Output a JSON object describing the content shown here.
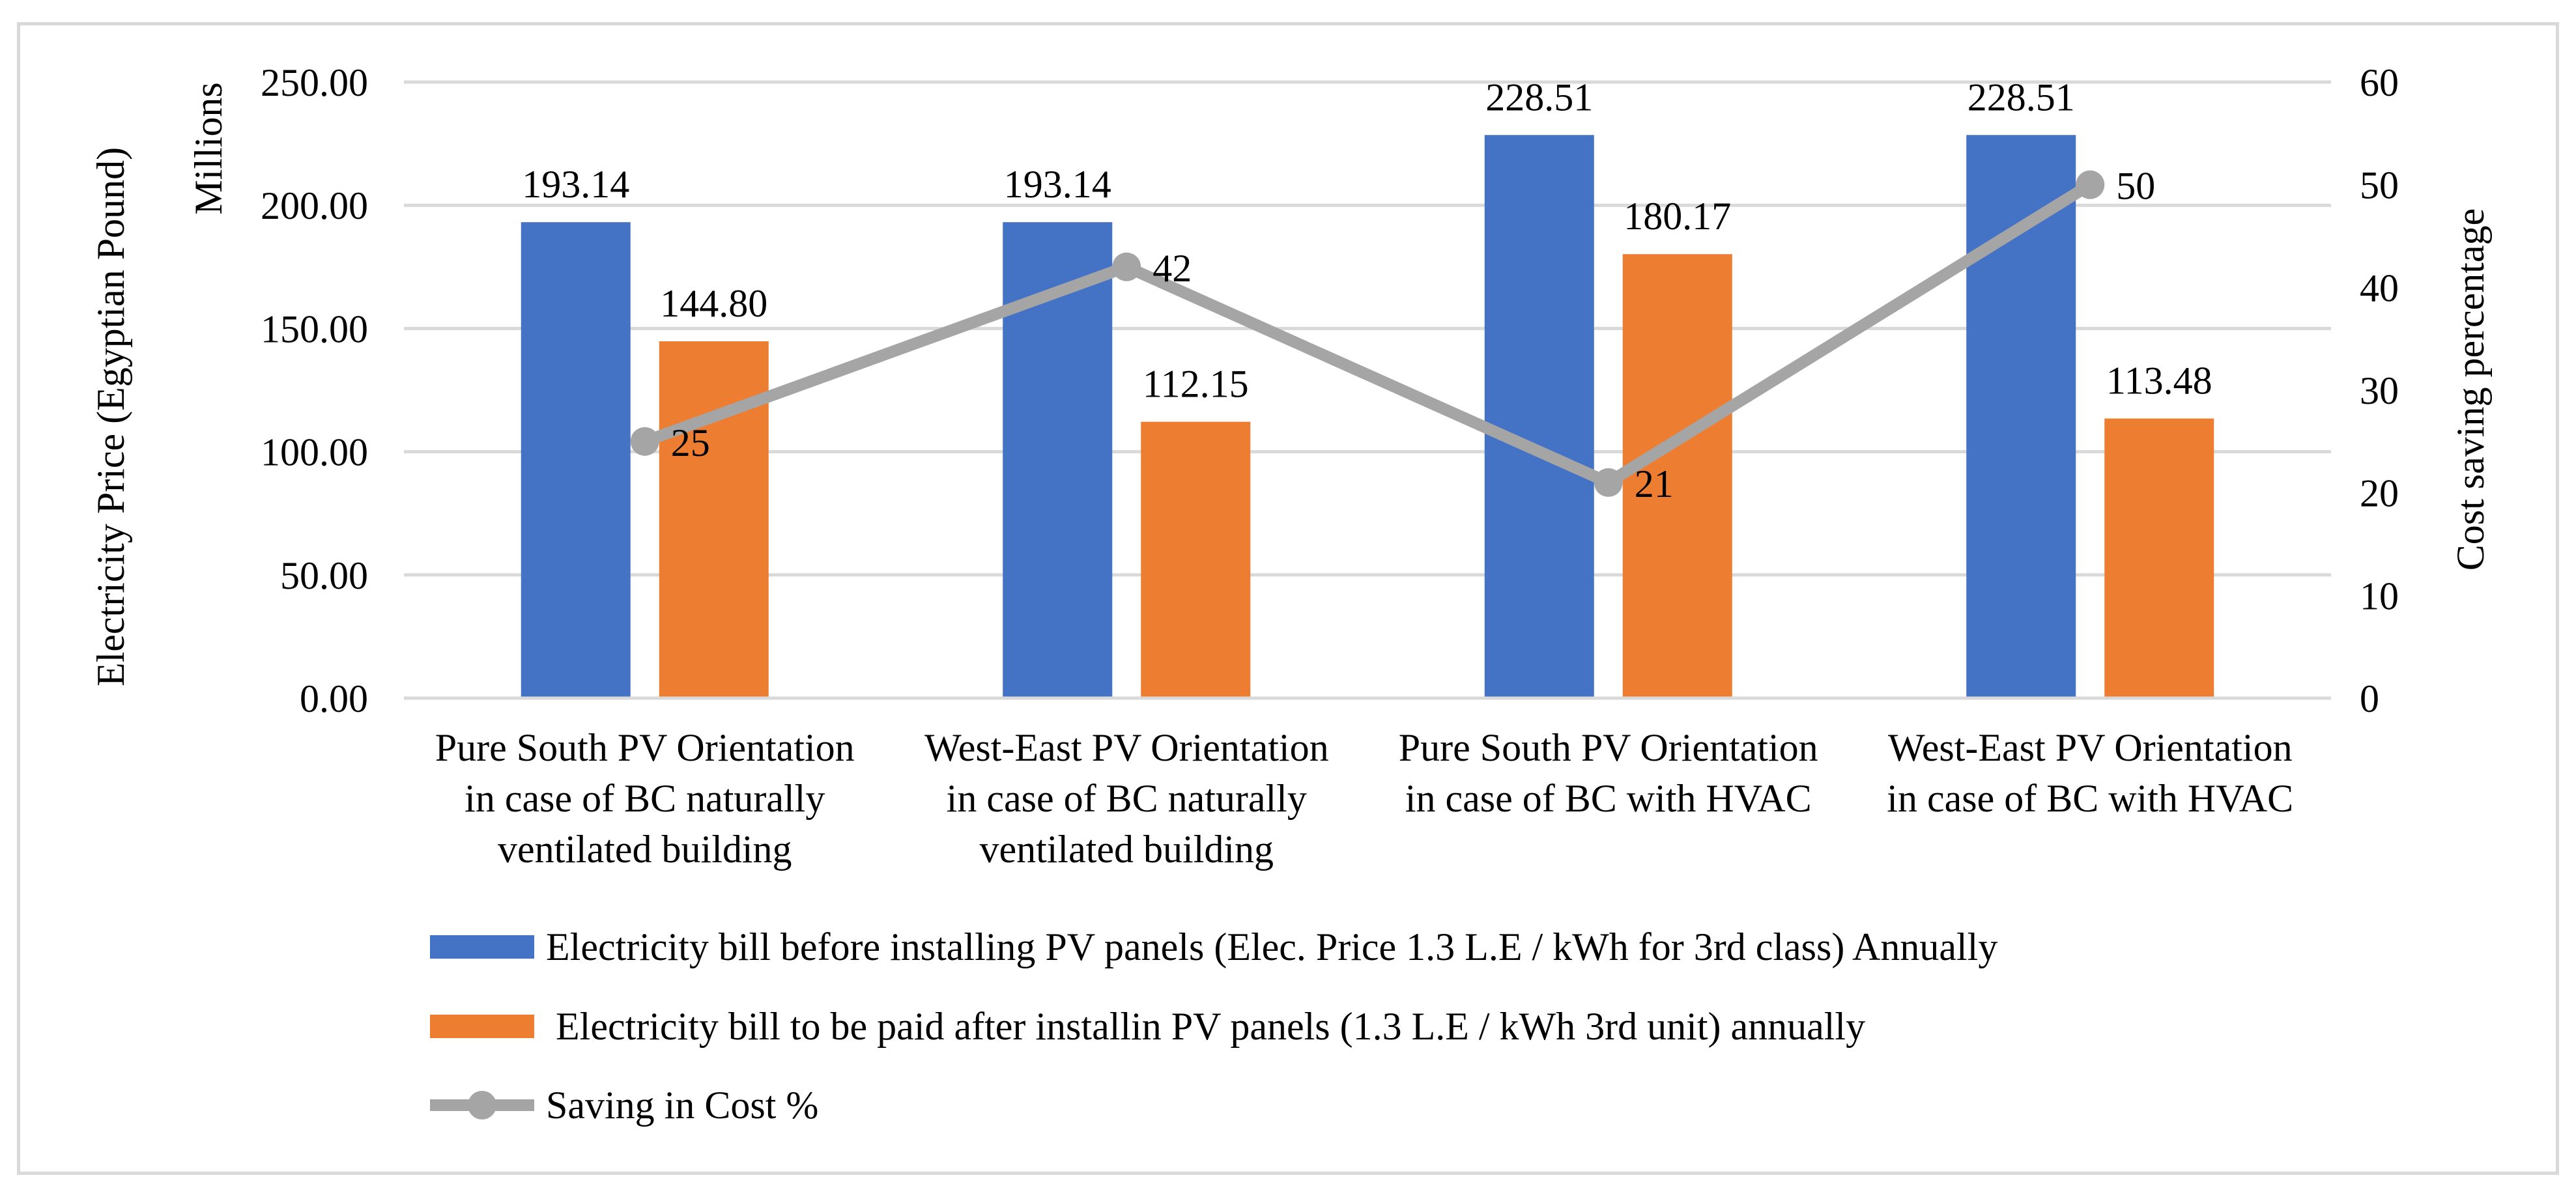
{
  "chart_data": {
    "type": "bar",
    "categories": [
      [
        "Pure South PV Orientation",
        "in case of BC naturally",
        "ventilated building"
      ],
      [
        "West-East PV Orientation",
        "in case of BC naturally",
        "ventilated building"
      ],
      [
        "Pure South PV Orientation",
        "in case of BC with HVAC"
      ],
      [
        "West-East PV Orientation",
        "in case of BC with HVAC"
      ]
    ],
    "series": [
      {
        "name": "Electricity bill before installing PV panels (Elec. Price 1.3 L.E / kWh for 3rd class) Annually",
        "kind": "bar",
        "axis": "left",
        "color": "#4472C4",
        "values": [
          193.14,
          193.14,
          228.51,
          228.51
        ],
        "labels": [
          "193.14",
          "193.14",
          "228.51",
          "228.51"
        ]
      },
      {
        "name": " Electricity bill to be paid after installin PV panels (1.3 L.E / kWh 3rd unit) annually",
        "kind": "bar",
        "axis": "left",
        "color": "#ED7D31",
        "values": [
          144.8,
          112.15,
          180.17,
          113.48
        ],
        "labels": [
          "144.80",
          "112.15",
          "180.17",
          "113.48"
        ]
      },
      {
        "name": "Saving in Cost %",
        "kind": "line",
        "axis": "right",
        "color": "#A5A5A5",
        "values": [
          25,
          42,
          21,
          50
        ],
        "labels": [
          "25",
          "42",
          "21",
          "50"
        ]
      }
    ],
    "y_left": {
      "label": "Electricity Price (Egyptian Pound)",
      "units_label": "Millions",
      "range": [
        0,
        250
      ],
      "ticks": [
        "0.00",
        "50.00",
        "100.00",
        "150.00",
        "200.00",
        "250.00"
      ]
    },
    "y_right": {
      "label": "Cost saving percentage",
      "range": [
        0,
        60
      ],
      "ticks": [
        "0",
        "10",
        "20",
        "30",
        "40",
        "50",
        "60"
      ]
    },
    "grid": true,
    "legend_position": "bottom"
  }
}
